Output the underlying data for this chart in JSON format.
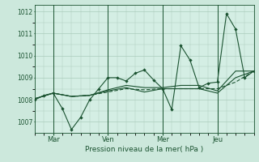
{
  "xlabel": "Pression niveau de la mer( hPa )",
  "bg_color": "#cce8dc",
  "plot_bg_color": "#d4eee4",
  "line_color": "#1a5230",
  "grid_color": "#aaccbb",
  "ylim": [
    1006.5,
    1012.3
  ],
  "xlim": [
    0,
    96
  ],
  "yticks": [
    1007,
    1008,
    1009,
    1010,
    1011,
    1012
  ],
  "day_ticks": [
    8,
    32,
    56,
    80
  ],
  "day_labels": [
    "Mar",
    "Ven",
    "Mer",
    "Jeu"
  ],
  "s1_x": [
    0,
    4,
    8,
    12,
    16,
    20,
    24,
    28,
    32,
    36,
    40,
    44,
    48,
    52,
    56,
    60,
    64,
    68,
    72,
    76,
    80,
    84,
    88,
    92,
    96
  ],
  "s1_y": [
    1008.0,
    1008.2,
    1008.3,
    1007.6,
    1006.65,
    1007.2,
    1008.0,
    1008.5,
    1009.0,
    1009.0,
    1008.85,
    1009.2,
    1009.35,
    1008.9,
    1008.5,
    1007.55,
    1010.45,
    1009.8,
    1008.55,
    1008.75,
    1008.8,
    1011.9,
    1011.2,
    1009.0,
    1009.3
  ],
  "s2_x": [
    0,
    8,
    16,
    24,
    32,
    40,
    48,
    56,
    64,
    72,
    80,
    88,
    96
  ],
  "s2_y": [
    1008.05,
    1008.3,
    1008.15,
    1008.2,
    1008.35,
    1008.5,
    1008.45,
    1008.5,
    1008.5,
    1008.5,
    1008.5,
    1008.8,
    1009.3
  ],
  "s3_x": [
    0,
    8,
    16,
    24,
    32,
    40,
    48,
    56,
    64,
    72,
    80,
    88,
    96
  ],
  "s3_y": [
    1008.05,
    1008.3,
    1008.15,
    1008.2,
    1008.45,
    1008.65,
    1008.55,
    1008.55,
    1008.65,
    1008.65,
    1008.4,
    1009.3,
    1009.3
  ],
  "s4_x": [
    0,
    8,
    16,
    24,
    32,
    40,
    48,
    56,
    64,
    72,
    80,
    88,
    96
  ],
  "s4_y": [
    1008.05,
    1008.3,
    1008.15,
    1008.2,
    1008.4,
    1008.55,
    1008.35,
    1008.5,
    1008.5,
    1008.5,
    1008.3,
    1009.0,
    1009.3
  ]
}
